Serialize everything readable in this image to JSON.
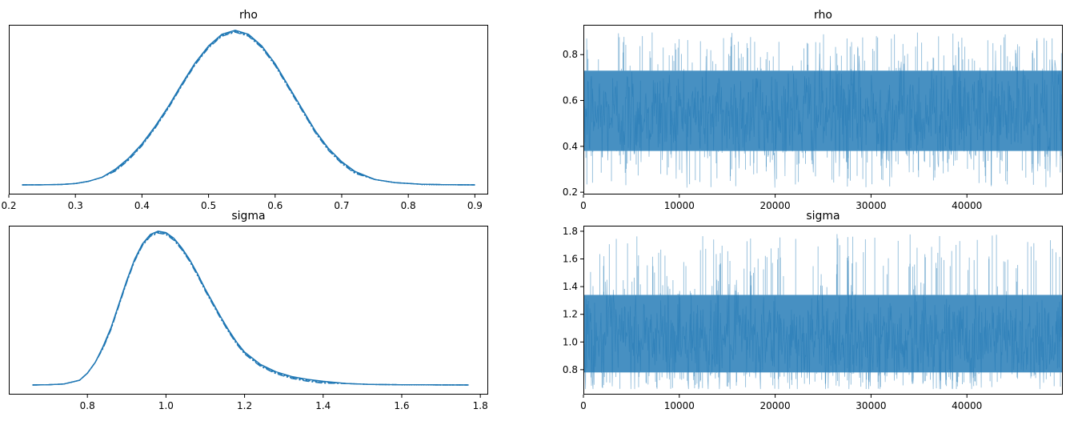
{
  "chart_data": [
    {
      "type": "line",
      "title": "rho",
      "xlabel": "",
      "ylabel": "",
      "xlim": [
        0.2,
        0.92
      ],
      "xticks": [
        0.2,
        0.3,
        0.4,
        0.5,
        0.6,
        0.7,
        0.8,
        0.9
      ],
      "yticks": [],
      "color": "#1f77b4",
      "series": [
        {
          "x": [
            0.22,
            0.25,
            0.28,
            0.3,
            0.32,
            0.34,
            0.36,
            0.38,
            0.4,
            0.42,
            0.44,
            0.46,
            0.48,
            0.5,
            0.52,
            0.54,
            0.56,
            0.58,
            0.6,
            0.62,
            0.64,
            0.66,
            0.68,
            0.7,
            0.72,
            0.75,
            0.78,
            0.82,
            0.86,
            0.9
          ],
          "y": [
            0.0,
            0.002,
            0.01,
            0.03,
            0.08,
            0.17,
            0.33,
            0.58,
            0.9,
            1.3,
            1.75,
            2.25,
            2.72,
            3.1,
            3.36,
            3.45,
            3.36,
            3.1,
            2.7,
            2.2,
            1.7,
            1.2,
            0.8,
            0.5,
            0.28,
            0.12,
            0.05,
            0.015,
            0.004,
            0.0
          ]
        }
      ]
    },
    {
      "type": "line",
      "title": "rho",
      "xlabel": "",
      "ylabel": "",
      "xlim": [
        0,
        50000
      ],
      "ylim": [
        0.19,
        0.93
      ],
      "xticks": [
        0,
        10000,
        20000,
        30000,
        40000
      ],
      "yticks": [
        0.2,
        0.4,
        0.6,
        0.8
      ],
      "color": "#1f77b4",
      "trace_summary": {
        "draws": 50000,
        "center": 0.54,
        "dense_band": [
          0.38,
          0.73
        ],
        "min": 0.22,
        "max": 0.9
      }
    },
    {
      "type": "line",
      "title": "sigma",
      "xlabel": "",
      "ylabel": "",
      "xlim": [
        0.6,
        1.82
      ],
      "xticks": [
        0.8,
        1.0,
        1.2,
        1.4,
        1.6,
        1.8
      ],
      "yticks": [],
      "color": "#1f77b4",
      "series": [
        {
          "x": [
            0.66,
            0.7,
            0.74,
            0.78,
            0.8,
            0.82,
            0.84,
            0.86,
            0.88,
            0.9,
            0.92,
            0.94,
            0.96,
            0.98,
            1.0,
            1.02,
            1.04,
            1.06,
            1.08,
            1.1,
            1.12,
            1.14,
            1.16,
            1.18,
            1.2,
            1.24,
            1.28,
            1.32,
            1.36,
            1.4,
            1.46,
            1.52,
            1.6,
            1.7,
            1.77
          ],
          "y": [
            0.0,
            0.005,
            0.02,
            0.1,
            0.25,
            0.48,
            0.8,
            1.2,
            1.7,
            2.2,
            2.65,
            2.98,
            3.18,
            3.25,
            3.22,
            3.1,
            2.9,
            2.65,
            2.35,
            2.02,
            1.72,
            1.42,
            1.14,
            0.89,
            0.68,
            0.42,
            0.26,
            0.16,
            0.1,
            0.06,
            0.03,
            0.012,
            0.005,
            0.002,
            0.0
          ]
        }
      ]
    },
    {
      "type": "line",
      "title": "sigma",
      "xlabel": "",
      "ylabel": "",
      "xlim": [
        0,
        50000
      ],
      "ylim": [
        0.62,
        1.84
      ],
      "xticks": [
        0,
        10000,
        20000,
        30000,
        40000
      ],
      "yticks": [
        0.8,
        1.0,
        1.2,
        1.4,
        1.6,
        1.8
      ],
      "color": "#1f77b4",
      "trace_summary": {
        "draws": 50000,
        "center": 1.02,
        "dense_band": [
          0.78,
          1.34
        ],
        "min": 0.66,
        "max": 1.78
      }
    }
  ]
}
